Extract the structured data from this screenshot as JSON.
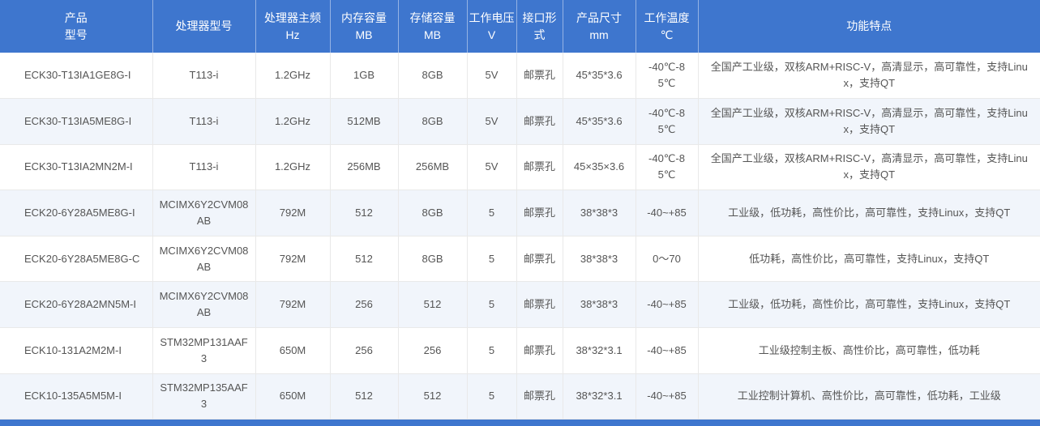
{
  "colors": {
    "header_bg": "#3E76CE",
    "header_text": "#FFFFFF",
    "body_text": "#555555",
    "border": "#E9E9E9",
    "alt_row_bg": "#F1F5FB"
  },
  "table": {
    "columns": [
      {
        "id": "model",
        "label": "产品\n型号"
      },
      {
        "id": "processor",
        "label": "处理器型号"
      },
      {
        "id": "frequency",
        "label": "处理器主频\nHz"
      },
      {
        "id": "memory",
        "label": "内存容量\nMB"
      },
      {
        "id": "storage",
        "label": "存储容量\nMB"
      },
      {
        "id": "voltage",
        "label": "工作电压\nV"
      },
      {
        "id": "interface",
        "label": "接口形\n式"
      },
      {
        "id": "size",
        "label": "产品尺寸\nmm"
      },
      {
        "id": "temperature",
        "label": "工作温度\n℃"
      },
      {
        "id": "features",
        "label": "功能特点"
      }
    ],
    "rows": [
      {
        "cells": [
          "ECK30-T13IA1GE8G-I",
          "T113-i",
          "1.2GHz",
          "1GB",
          "8GB",
          "5V",
          "邮票孔",
          "45*35*3.6",
          "-40℃-85℃",
          "全国产工业级，双核ARM+RISC-V，高清显示，高可靠性，支持Linux，支持QT"
        ]
      },
      {
        "cells": [
          "ECK30-T13IA5ME8G-I",
          "T113-i",
          "1.2GHz",
          "512MB",
          "8GB",
          "5V",
          "邮票孔",
          "45*35*3.6",
          "-40℃-85℃",
          "全国产工业级，双核ARM+RISC-V，高清显示，高可靠性，支持Linux，支持QT"
        ]
      },
      {
        "cells": [
          "ECK30-T13IA2MN2M-I",
          "T113-i",
          "1.2GHz",
          "256MB",
          "256MB",
          "5V",
          "邮票孔",
          "45×35×3.6",
          "-40℃-85℃",
          "全国产工业级，双核ARM+RISC-V，高清显示，高可靠性，支持Linux，支持QT"
        ]
      },
      {
        "cells": [
          "ECK20-6Y28A5ME8G-I",
          "MCIMX6Y2CVM08AB",
          "792M",
          "512",
          "8GB",
          "5",
          "邮票孔",
          "38*38*3",
          "-40~+85",
          "工业级，低功耗，高性价比，高可靠性，支持Linux，支持QT"
        ]
      },
      {
        "cells": [
          "ECK20-6Y28A5ME8G-C",
          "MCIMX6Y2CVM08AB",
          "792M",
          "512",
          "8GB",
          "5",
          "邮票孔",
          "38*38*3",
          "0～70",
          "低功耗，高性价比，高可靠性，支持Linux，支持QT"
        ]
      },
      {
        "cells": [
          "ECK20-6Y28A2MN5M-I",
          "MCIMX6Y2CVM08AB",
          "792M",
          "256",
          "512",
          "5",
          "邮票孔",
          "38*38*3",
          "-40~+85",
          "工业级，低功耗，高性价比，高可靠性，支持Linux，支持QT"
        ]
      },
      {
        "cells": [
          "ECK10-131A2M2M-I",
          "STM32MP131AAF3",
          "650M",
          "256",
          "256",
          "5",
          "邮票孔",
          "38*32*3.1",
          "-40~+85",
          "工业级控制主板、高性价比，高可靠性，低功耗"
        ]
      },
      {
        "cells": [
          "ECK10-135A5M5M-I",
          "STM32MP135AAF3",
          "650M",
          "512",
          "512",
          "5",
          "邮票孔",
          "38*32*3.1",
          "-40~+85",
          "工业控制计算机、高性价比，高可靠性，低功耗，工业级"
        ]
      }
    ]
  }
}
